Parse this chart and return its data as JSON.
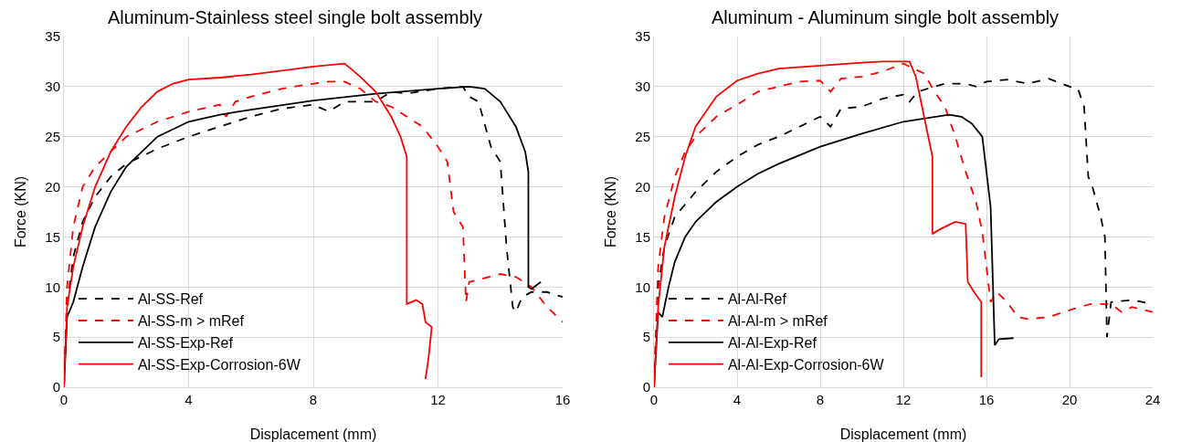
{
  "chart_data": [
    {
      "type": "line",
      "title": "Aluminum-Stainless steel single bolt assembly",
      "xlabel": "Displacement (mm)",
      "ylabel": "Force (KN)",
      "xlim": [
        0,
        16
      ],
      "xticks": [
        0,
        4,
        8,
        12,
        16
      ],
      "ylim": [
        0,
        35
      ],
      "yticks": [
        0,
        5,
        10,
        15,
        20,
        25,
        30,
        35
      ],
      "grid": true,
      "legend": "bottom left",
      "marker": "none",
      "series": [
        {
          "name": "Al-SS-Ref",
          "color": "#000000",
          "line_style": "dashed",
          "x": [
            0,
            0.1,
            0.3,
            0.6,
            1,
            1.5,
            2,
            3,
            4,
            5,
            6,
            7,
            8,
            8.5,
            9,
            10,
            10.5,
            11,
            12,
            12.8,
            13,
            13.3,
            13.7,
            14,
            14.2,
            14.4,
            14.5,
            14.7,
            15,
            15.5,
            16
          ],
          "values": [
            0,
            8,
            13,
            16.5,
            19,
            21,
            22.3,
            23.8,
            25,
            26,
            27,
            27.8,
            28.2,
            27.5,
            28.5,
            28.5,
            29.5,
            29.3,
            29.8,
            30,
            29,
            28.5,
            24,
            22.5,
            14,
            8,
            7.5,
            9,
            9.5,
            9.5,
            9
          ]
        },
        {
          "name": "Al-SS-m > mRef",
          "color": "#ff0000",
          "line_style": "dashed",
          "x": [
            0,
            0.1,
            0.3,
            0.6,
            1,
            1.5,
            2,
            3,
            4,
            5,
            5.2,
            5.5,
            6,
            7,
            8,
            8.5,
            9,
            9.5,
            10,
            10.5,
            11,
            11.5,
            12,
            12.3,
            12.5,
            12.8,
            12.9,
            13,
            14,
            14.5,
            15,
            15.5,
            16
          ],
          "values": [
            0,
            10,
            16,
            20,
            22,
            23.5,
            25,
            26.5,
            27.5,
            28.2,
            27,
            28.5,
            29,
            29.8,
            30.3,
            30.5,
            30.5,
            29.8,
            28.5,
            28,
            27,
            26,
            24,
            22.5,
            17.5,
            16,
            8.5,
            10.5,
            11.3,
            11,
            10,
            8,
            6.5
          ]
        },
        {
          "name": "Al-SS-Exp-Ref",
          "color": "#000000",
          "line_style": "solid",
          "x": [
            0,
            0.1,
            0.3,
            0.6,
            1,
            1.5,
            2,
            3,
            4,
            5,
            6,
            8,
            10,
            12,
            13,
            13.5,
            14,
            14.5,
            14.8,
            14.9,
            14.9,
            15,
            15.3
          ],
          "values": [
            0,
            7,
            8.5,
            12,
            16,
            19.5,
            22,
            25,
            26.5,
            27.2,
            27.7,
            28.6,
            29.3,
            29.8,
            30,
            29.8,
            28.5,
            26,
            23.5,
            21.5,
            10,
            9.8,
            10.5
          ]
        },
        {
          "name": "Al-SS-Exp-Corrosion-6W",
          "color": "#ff0000",
          "line_style": "solid",
          "x": [
            0,
            0.1,
            0.3,
            0.6,
            1,
            1.5,
            2,
            2.5,
            3,
            3.5,
            4,
            5,
            6,
            7,
            8,
            9,
            9.2,
            9.5,
            10,
            10.5,
            10.8,
            11,
            11,
            11.3,
            11.5,
            11.6,
            11.8,
            11.7,
            11.6
          ],
          "values": [
            0,
            8,
            12,
            16,
            20,
            23.5,
            26,
            28,
            29.5,
            30.3,
            30.7,
            30.9,
            31.2,
            31.6,
            32,
            32.3,
            31.8,
            31,
            29.5,
            27,
            25,
            23,
            8.3,
            8.7,
            8.3,
            6.5,
            6,
            3,
            0.8
          ]
        }
      ]
    },
    {
      "type": "line",
      "title": "Aluminum - Aluminum single bolt assembly",
      "xlabel": "Displacement (mm)",
      "ylabel": "Force (KN)",
      "xlim": [
        0,
        24
      ],
      "xticks": [
        0,
        4,
        8,
        12,
        16,
        20,
        24
      ],
      "ylim": [
        0,
        35
      ],
      "yticks": [
        0,
        5,
        10,
        15,
        20,
        25,
        30,
        35
      ],
      "grid": true,
      "legend": "bottom left",
      "marker": "none",
      "series": [
        {
          "name": "Al-Al-Ref",
          "color": "#000000",
          "line_style": "dashed",
          "x": [
            0,
            0.2,
            0.5,
            1,
            2,
            3,
            4,
            5,
            6,
            7,
            8,
            8.5,
            9,
            10,
            11,
            12,
            12.3,
            12.7,
            13.5,
            14,
            15,
            15.5,
            16,
            17,
            18,
            19,
            20,
            20.4,
            20.7,
            20.9,
            21.1,
            21.5,
            21.7,
            21.8,
            22,
            23,
            24
          ],
          "values": [
            0,
            10,
            14,
            17,
            19.5,
            21.5,
            23,
            24.2,
            25,
            26,
            27,
            26,
            27.8,
            28,
            28.8,
            29.2,
            28.5,
            29.5,
            30,
            30.3,
            30.3,
            30,
            30.5,
            30.7,
            30.3,
            30.8,
            30,
            29.8,
            28,
            21,
            20,
            17,
            15,
            5,
            8.5,
            8.7,
            8.3
          ]
        },
        {
          "name": "Al-Al-m > mRef",
          "color": "#ff0000",
          "line_style": "dashed",
          "x": [
            0,
            0.2,
            0.5,
            1,
            1.5,
            2,
            3,
            4,
            5,
            6,
            7,
            8,
            8.5,
            9,
            10,
            11,
            12,
            12.5,
            13,
            13.5,
            14,
            14.5,
            15,
            15.5,
            15.8,
            16.2,
            16.5,
            17,
            17.5,
            18,
            19,
            20,
            21,
            22,
            22.5,
            23,
            24
          ],
          "values": [
            0,
            12,
            17,
            21,
            23.5,
            25,
            27,
            28.2,
            29.5,
            30,
            30.5,
            30.6,
            29.5,
            30.8,
            31,
            31.5,
            32.3,
            31.8,
            31.3,
            29.5,
            28,
            25,
            21.5,
            18.5,
            15.5,
            8.5,
            9.5,
            8.5,
            7,
            6.8,
            7,
            7.7,
            8.3,
            8.3,
            7.5,
            8,
            7.5
          ]
        },
        {
          "name": "Al-Al-Exp-Ref",
          "color": "#000000",
          "line_style": "solid",
          "x": [
            0,
            0.2,
            0.4,
            0.7,
            1,
            1.5,
            2,
            3,
            4,
            5,
            6,
            8,
            10,
            12,
            14.2,
            14.8,
            15.3,
            15.8,
            16.2,
            16.4,
            16.6,
            17.3
          ],
          "values": [
            0,
            7.5,
            7,
            10,
            12.5,
            15,
            16.5,
            18.5,
            20,
            21.3,
            22.3,
            24,
            25.3,
            26.5,
            27.2,
            27,
            26.3,
            25,
            18,
            4.2,
            4.8,
            4.9
          ]
        },
        {
          "name": "Al-Al-Exp-Corrosion-6W",
          "color": "#ff0000",
          "line_style": "solid",
          "x": [
            0,
            0.2,
            0.5,
            1,
            1.5,
            2,
            3,
            4,
            5,
            6,
            8,
            10,
            11,
            12.3,
            12.6,
            12.9,
            13.2,
            13.4,
            13.4,
            13.8,
            14.5,
            15,
            15.1,
            15.4,
            15.75,
            15.75
          ],
          "values": [
            0,
            8,
            14,
            19,
            23,
            26,
            29,
            30.6,
            31.3,
            31.8,
            32.1,
            32.4,
            32.5,
            32.5,
            31,
            28,
            25,
            23,
            15.3,
            15.8,
            16.5,
            16.3,
            10.5,
            9.5,
            8.5,
            1
          ]
        }
      ]
    }
  ]
}
